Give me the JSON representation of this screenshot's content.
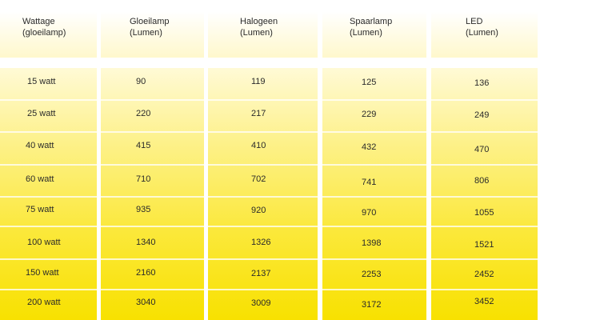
{
  "chart_data": {
    "type": "table",
    "columns": [
      "Wattage\n(gloeilamp)",
      "Gloeilamp\n(Lumen)",
      "Halogeen\n(Lumen)",
      "Spaarlamp\n(Lumen)",
      "LED\n(Lumen)"
    ],
    "rows": [
      [
        "15 watt",
        "90",
        "119",
        "125",
        "136"
      ],
      [
        "25 watt",
        "220",
        "217",
        "229",
        "249"
      ],
      [
        "40 watt",
        "415",
        "410",
        "432",
        "470"
      ],
      [
        "60 watt",
        "710",
        "702",
        "741",
        "806"
      ],
      [
        "75 watt",
        "935",
        "920",
        "970",
        "1055"
      ],
      [
        "100 watt",
        "1340",
        "1326",
        "1398",
        "1521"
      ],
      [
        "150 watt",
        "2160",
        "2137",
        "2253",
        "2452"
      ],
      [
        "200 watt",
        "3040",
        "3009",
        "3172",
        "3452"
      ]
    ]
  },
  "colors": {
    "header_fade": "#fff8cc",
    "body_top": "#fffad6",
    "body_bottom": "#f8e100",
    "text": "#2a2a2a"
  }
}
